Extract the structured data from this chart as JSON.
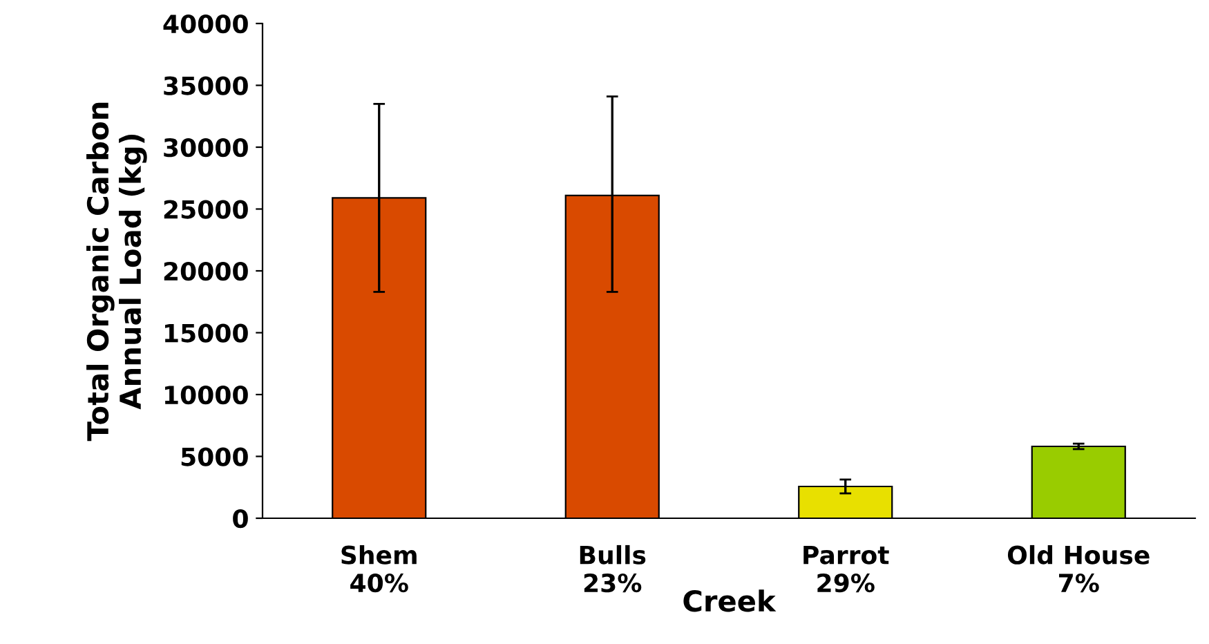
{
  "chart_data": {
    "type": "bar",
    "xlabel": "Creek",
    "ylabel": "Total Organic Carbon\nAnnual Load (kg)",
    "categories": [
      "Shem\n40%",
      "Bulls\n23%",
      "Parrot\n29%",
      "Old House\n7%"
    ],
    "values": [
      25900,
      26100,
      2570,
      5810
    ],
    "colors": [
      "#d94a00",
      "#d94a00",
      "#e8e000",
      "#99cc00"
    ],
    "errors": [
      [
        18300,
        33500
      ],
      [
        18300,
        34100
      ],
      [
        2010,
        3130
      ],
      [
        5590,
        6030
      ]
    ],
    "ylim": [
      0,
      40000
    ],
    "yticks": [
      0,
      5000,
      10000,
      15000,
      20000,
      25000,
      30000,
      35000,
      40000
    ],
    "grid": false,
    "legend": false
  }
}
